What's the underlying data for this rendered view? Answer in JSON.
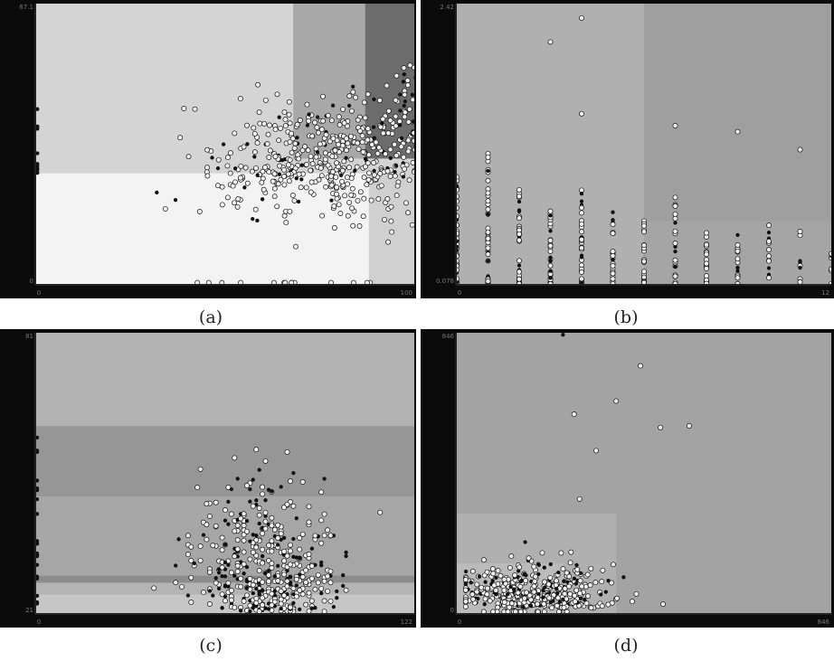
{
  "captions": [
    "(a)",
    "(b)",
    "(c)",
    "(d)"
  ],
  "colors": {
    "frame": "#0b0b0b",
    "axis_line": "#3a3a3a",
    "tick_text": "#777777",
    "point_stroke": "#111111"
  },
  "chart_data": [
    {
      "type": "scatter",
      "xlim": [
        0,
        100
      ],
      "ylim": [
        0,
        67.1
      ],
      "x_ticks": [
        "0",
        "100"
      ],
      "y_ticks": [
        "0",
        "67.1"
      ],
      "background": "decision regions (grey shades)",
      "regions": [
        {
          "x0": 0,
          "x1": 100,
          "y0": 0,
          "y1": 67.1,
          "color": "#d4d4d4"
        },
        {
          "x0": 0,
          "x1": 88,
          "y0": 0,
          "y1": 26.5,
          "color": "#f3f3f3"
        },
        {
          "x0": 88,
          "x1": 100,
          "y0": 0,
          "y1": 26.5,
          "color": "#d0d0d0"
        },
        {
          "x0": 100,
          "x1": 180,
          "y0": 0,
          "y1": 26.5,
          "color": "#6a6a6a"
        },
        {
          "x0": 100,
          "x1": 180,
          "y0": 26.5,
          "y1": 30.2,
          "color": "#a2a2a2"
        },
        {
          "x0": 68,
          "x1": 87,
          "y0": 30,
          "y1": 67.1,
          "color": "#a8a8a8"
        },
        {
          "x0": 87,
          "x1": 107,
          "y0": 30,
          "y1": 67.1,
          "color": "#6c6c6c"
        },
        {
          "x0": 107,
          "x1": 180,
          "y0": 30,
          "y1": 67.1,
          "color": "#262626"
        }
      ],
      "cluster": {
        "center": [
          80,
          30
        ],
        "spread": [
          17,
          7
        ]
      }
    },
    {
      "type": "scatter",
      "xlim": [
        0,
        12
      ],
      "ylim": [
        0.078,
        2.42
      ],
      "x_ticks": [
        "0",
        "12"
      ],
      "y_ticks": [
        "0.078",
        "2.42"
      ],
      "background": "decision regions (grey shades)",
      "regions": [
        {
          "x0": 0,
          "x1": 12,
          "y0": 0.078,
          "y1": 2.42,
          "color": "#a9a9a9"
        },
        {
          "x0": 0,
          "x1": 6,
          "y0": 0.078,
          "y1": 2.42,
          "color": "#b0b0b0"
        },
        {
          "x0": 6,
          "x1": 12,
          "y0": 0.078,
          "y1": 2.42,
          "color": "#9f9f9f"
        },
        {
          "x0": 6,
          "x1": 12,
          "y0": 0.078,
          "y1": 0.6,
          "color": "#a5a5a5"
        }
      ],
      "columns": [
        0,
        1,
        2,
        3,
        4,
        5,
        6,
        7,
        8,
        9,
        10,
        11,
        12
      ],
      "outliers": [
        [
          4,
          2.3
        ],
        [
          3,
          2.1
        ],
        [
          4,
          1.5
        ],
        [
          7,
          1.4
        ],
        [
          9,
          1.35
        ],
        [
          11,
          1.2
        ]
      ]
    },
    {
      "type": "scatter",
      "xlim": [
        0,
        122
      ],
      "ylim": [
        21,
        81
      ],
      "x_ticks": [
        "0",
        "122"
      ],
      "y_ticks": [
        "21",
        "81"
      ],
      "background": "decision regions (grey shades)",
      "regions": [
        {
          "x0": 0,
          "x1": 122,
          "y0": 21,
          "y1": 81,
          "color": "#a6a6a6"
        },
        {
          "x0": 0,
          "x1": 122,
          "y0": 61,
          "y1": 81,
          "color": "#b2b2b2"
        },
        {
          "x0": 0,
          "x1": 122,
          "y0": 21,
          "y1": 25,
          "color": "#c6c6c6"
        },
        {
          "x0": 0,
          "x1": 122,
          "y0": 25,
          "y1": 27.5,
          "color": "#b4b4b4"
        },
        {
          "x0": 0,
          "x1": 122,
          "y0": 27.5,
          "y1": 29,
          "color": "#8c8c8c"
        },
        {
          "x0": 0,
          "x1": 122,
          "y0": 46,
          "y1": 61,
          "color": "#969696"
        }
      ],
      "cluster": {
        "center": [
          75,
          34
        ],
        "spread": [
          12,
          10
        ]
      }
    },
    {
      "type": "scatter",
      "xlim": [
        0,
        846
      ],
      "ylim": [
        0,
        846
      ],
      "x_ticks": [
        "0",
        "846"
      ],
      "y_ticks": [
        "0",
        "846"
      ],
      "background": "decision regions (grey shades)",
      "regions": [
        {
          "x0": 0,
          "x1": 846,
          "y0": 0,
          "y1": 846,
          "color": "#a3a3a3"
        },
        {
          "x0": 0,
          "x1": 360,
          "y0": 0,
          "y1": 300,
          "color": "#b0b0b0"
        },
        {
          "x0": 0,
          "x1": 240,
          "y0": 0,
          "y1": 150,
          "color": "#bbbbbb"
        }
      ],
      "cluster": {
        "center": [
          170,
          130
        ],
        "spread": [
          85,
          60
        ]
      },
      "outliers": [
        [
          240,
          840
        ],
        [
          415,
          746
        ],
        [
          360,
          640
        ],
        [
          265,
          600
        ],
        [
          460,
          560
        ],
        [
          525,
          565
        ],
        [
          315,
          490
        ]
      ]
    }
  ]
}
